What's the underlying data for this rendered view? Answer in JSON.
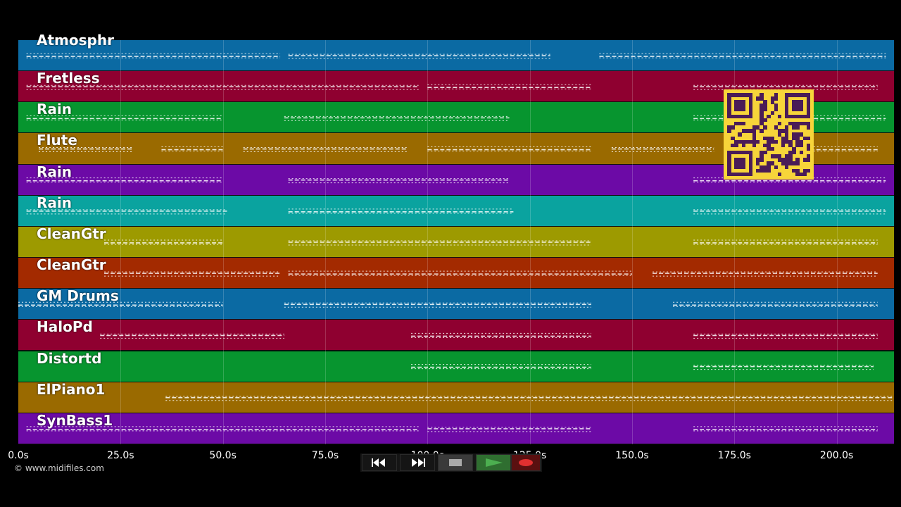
{
  "tracks": [
    {
      "name": "Atmosphr",
      "color": "#0b6aa3"
    },
    {
      "name": "Fretless",
      "color": "#8f0030"
    },
    {
      "name": "Rain",
      "color": "#07952f"
    },
    {
      "name": "Flute",
      "color": "#9a6a00"
    },
    {
      "name": "Rain",
      "color": "#6c0aa6"
    },
    {
      "name": "Rain",
      "color": "#0aa39f"
    },
    {
      "name": "CleanGtr",
      "color": "#9d9a00"
    },
    {
      "name": "CleanGtr",
      "color": "#a32a00"
    },
    {
      "name": "GM Drums",
      "color": "#0b6aa3"
    },
    {
      "name": "HaloPd",
      "color": "#8f0030"
    },
    {
      "name": "Distortd",
      "color": "#07952f"
    },
    {
      "name": "ElPiano1",
      "color": "#9a6a00"
    },
    {
      "name": "SynBass1",
      "color": "#6c0aa6"
    }
  ],
  "timeline": {
    "start_s": 0,
    "end_s": 214,
    "ticks": [
      "0.0s",
      "25.0s",
      "50.0s",
      "75.0s",
      "100.0s",
      "125.0s",
      "150.0s",
      "175.0s",
      "200.0s"
    ]
  },
  "note_segments": [
    [
      [
        2,
        64
      ],
      [
        66,
        130
      ],
      [
        142,
        212
      ]
    ],
    [
      [
        2,
        98
      ],
      [
        100,
        140
      ],
      [
        165,
        210
      ]
    ],
    [
      [
        2,
        50
      ],
      [
        65,
        120
      ],
      [
        165,
        212
      ]
    ],
    [
      [
        5,
        28
      ],
      [
        35,
        50
      ],
      [
        55,
        95
      ],
      [
        100,
        140
      ],
      [
        145,
        170
      ],
      [
        178,
        210
      ]
    ],
    [
      [
        2,
        50
      ],
      [
        66,
        120
      ],
      [
        165,
        212
      ]
    ],
    [
      [
        2,
        51
      ],
      [
        66,
        121
      ],
      [
        165,
        212
      ]
    ],
    [
      [
        21,
        50
      ],
      [
        66,
        140
      ],
      [
        165,
        210
      ]
    ],
    [
      [
        21,
        64
      ],
      [
        66,
        150
      ],
      [
        155,
        210
      ]
    ],
    [
      [
        0,
        50
      ],
      [
        65,
        140
      ],
      [
        160,
        210
      ]
    ],
    [
      [
        20,
        65
      ],
      [
        96,
        140
      ],
      [
        165,
        210
      ]
    ],
    [
      [
        96,
        140
      ],
      [
        165,
        209
      ]
    ],
    [
      [
        36,
        214
      ]
    ],
    [
      [
        2,
        98
      ],
      [
        100,
        140
      ],
      [
        165,
        210
      ]
    ]
  ],
  "copyright": "© www.midifiles.com",
  "transport": {
    "rewind_icon": "rewind-icon",
    "fast_forward_icon": "fast-forward-icon",
    "stop_icon": "stop-icon",
    "play_icon": "play-icon",
    "record_icon": "record-icon",
    "play_color": "#4caf50",
    "record_color": "#e03030"
  },
  "qr_code": {
    "fg": "#4a1c57",
    "bg": "#f7d53a"
  }
}
